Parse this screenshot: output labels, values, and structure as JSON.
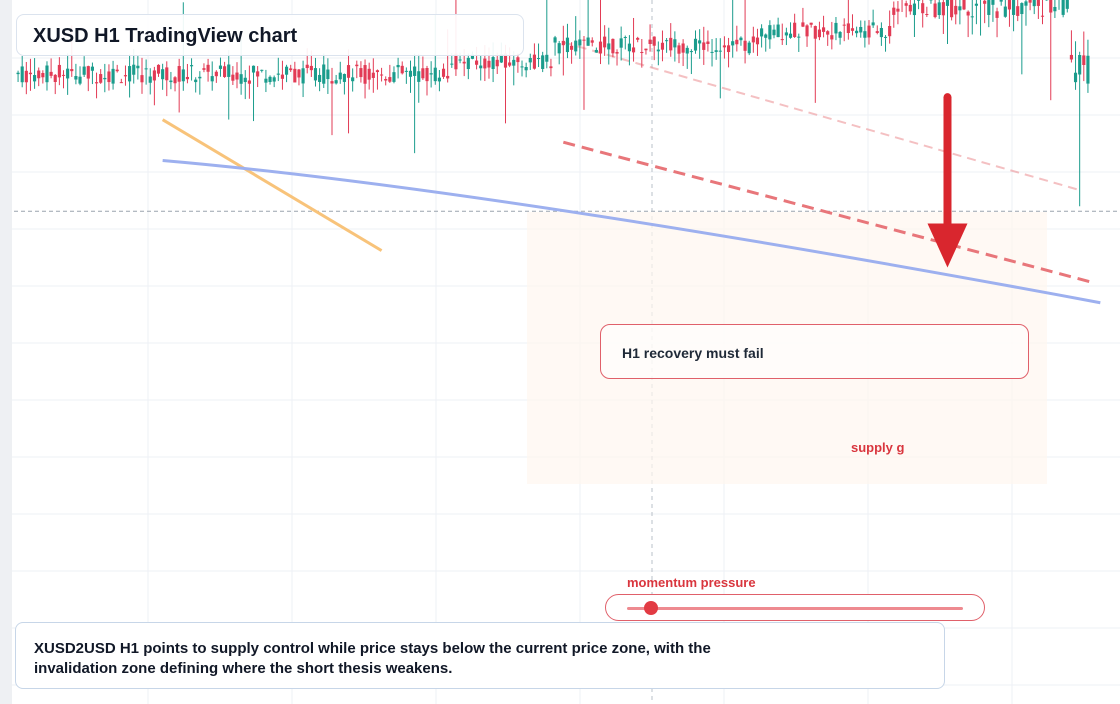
{
  "title": "XUSD H1 TradingView chart",
  "annotation": "H1 recovery must fail",
  "zone_label": "supply g",
  "momentum": {
    "label": "momentum pressure",
    "level": 0.07
  },
  "summary": "XUSD2USD H1 points to supply control while price stays below the current price zone, with the invalidation zone defining where the short thesis weakens.",
  "colors": {
    "bull": "#1a9c8c",
    "bear": "#e23b55",
    "ma_fast": "#f8c37a",
    "ma_slow": "#9db0ef",
    "trend": "#e8767a",
    "arrow": "#d9262e"
  },
  "chart_data": {
    "type": "candlestick",
    "timeframe": "H1",
    "grid": true,
    "legend": "none",
    "candle_count": 260,
    "price_range": [
      0,
      100
    ],
    "segments": [
      {
        "from": 0,
        "to": 105,
        "level": 89.5,
        "amp": 2.8
      },
      {
        "from": 105,
        "to": 130,
        "level": 91.2,
        "amp": 2.5
      },
      {
        "from": 130,
        "to": 180,
        "level": 93.6,
        "amp": 2.5
      },
      {
        "from": 180,
        "to": 212,
        "level": 95.6,
        "amp": 2.5
      },
      {
        "from": 212,
        "to": 255,
        "level": 99.2,
        "amp": 3.5
      },
      {
        "from": 255,
        "to": 260,
        "level": 90.0,
        "amp": 5.0
      }
    ],
    "moving_averages": [
      {
        "color_key": "ma_fast",
        "points": [
          [
            35,
            83.0
          ],
          [
            88,
            64.4
          ]
        ]
      },
      {
        "color_key": "ma_slow",
        "points": [
          [
            35,
            77.2
          ],
          [
            262,
            57.0
          ]
        ],
        "curve": true
      }
    ],
    "trend_lines": [
      {
        "style": "dashed",
        "strength": "strong",
        "points": [
          [
            132,
            79.8
          ],
          [
            260,
            59.9
          ]
        ]
      },
      {
        "style": "dashed",
        "strength": "faint",
        "points": [
          [
            132,
            94.0
          ],
          [
            257,
            73.0
          ]
        ]
      }
    ],
    "arrow": {
      "from": [
        225,
        86.2
      ],
      "to": [
        225,
        62.0
      ]
    },
    "reference_levels": [
      70.0
    ]
  }
}
